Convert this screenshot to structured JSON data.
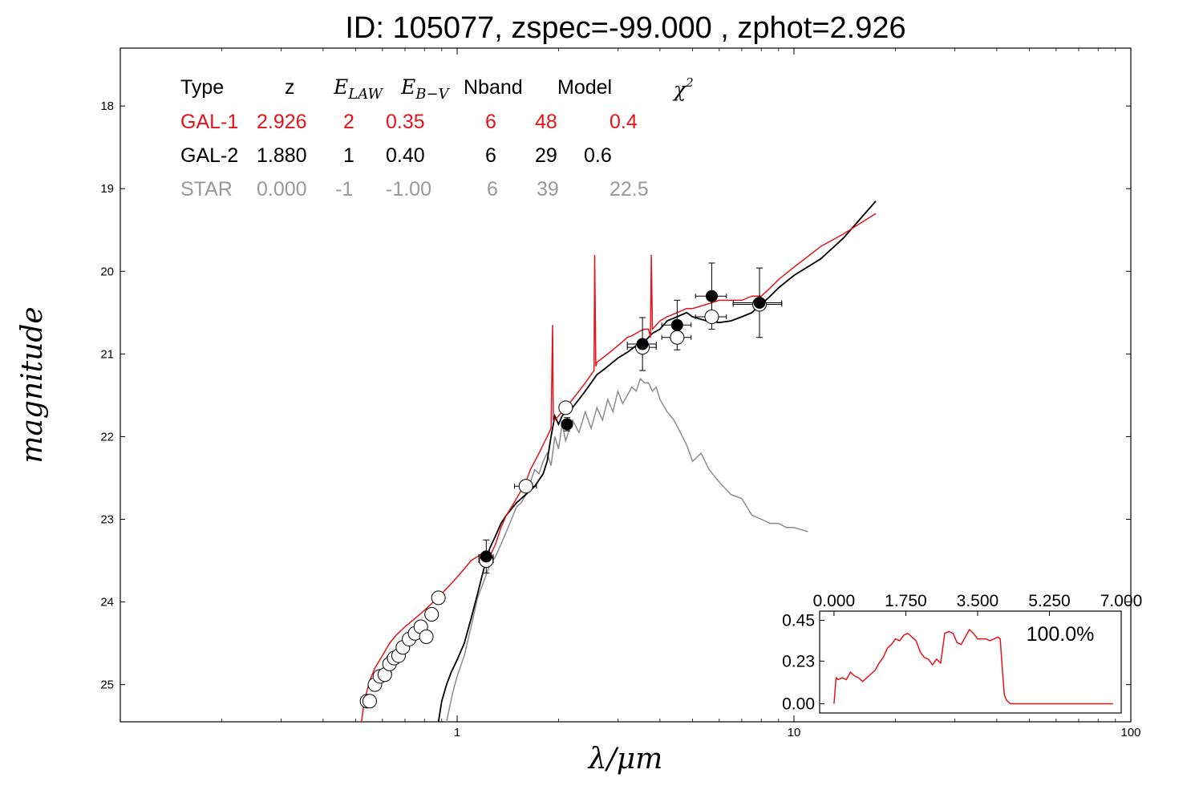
{
  "title": "ID:  105077, zspec=-99.000 , zphot=2.926",
  "colors": {
    "gal1": "#e3141c",
    "gal2": "#000000",
    "star": "#8c8c8c",
    "err": "#000000"
  },
  "chart_data": [
    {
      "type": "line",
      "name": "sed",
      "xlabel": "λ/μm",
      "ylabel": "magnitude",
      "xscale": "log",
      "xlim": [
        0.1,
        100
      ],
      "ylim": [
        25.45,
        17.3
      ],
      "x_tick_labels": [
        "1",
        "10",
        "100"
      ],
      "x_ticks": [
        1,
        10,
        100
      ],
      "y_ticks": [
        18,
        19,
        20,
        21,
        22,
        23,
        24,
        25
      ],
      "y_tick_labels": [
        "18",
        "19",
        "20",
        "21",
        "22",
        "23",
        "24",
        "25"
      ],
      "table": {
        "headers": [
          "Type",
          "z",
          "E_LAW",
          "E_B−V",
          "Nband",
          "Model",
          "χ2"
        ],
        "rows": [
          {
            "type": "GAL-1",
            "z": "2.926",
            "elaw": "2",
            "ebv": "0.35",
            "nband": "6",
            "model": "48",
            "chi2": "0.4",
            "color": "#e3141c"
          },
          {
            "type": "GAL-2",
            "z": "1.880",
            "elaw": "1",
            "ebv": "0.40",
            "nband": "6",
            "model": "29",
            "chi2": "0.6",
            "color": "#000000"
          },
          {
            "type": "STAR",
            "z": "0.000",
            "elaw": "-1",
            "ebv": "-1.00",
            "nband": "6",
            "model": "39",
            "chi2": "22.5",
            "color": "#999999"
          }
        ]
      },
      "series": [
        {
          "name": "GAL-1",
          "color": "#e3141c",
          "x": [
            0.52,
            0.53,
            0.55,
            0.57,
            0.6,
            0.63,
            0.66,
            0.7,
            0.75,
            0.8,
            0.85,
            0.9,
            0.95,
            1.0,
            1.05,
            1.1,
            1.15,
            1.2,
            1.25,
            1.3,
            1.35,
            1.4,
            1.45,
            1.5,
            1.55,
            1.6,
            1.65,
            1.7,
            1.75,
            1.8,
            1.85,
            1.9,
            1.92,
            1.93,
            1.95,
            2.0,
            2.05,
            2.1,
            2.15,
            2.2,
            2.3,
            2.4,
            2.5,
            2.55,
            2.56,
            2.58,
            2.6,
            2.7,
            2.8,
            2.9,
            3.0,
            3.1,
            3.2,
            3.3,
            3.4,
            3.5,
            3.6,
            3.7,
            3.75,
            3.77,
            3.8,
            3.9,
            4.0,
            4.2,
            4.5,
            4.8,
            5.0,
            5.5,
            6.0,
            6.5,
            7.0,
            7.5,
            8.0,
            8.5,
            9.0,
            10.0,
            12.0,
            14.0,
            17.5
          ],
          "y": [
            25.45,
            25.2,
            24.95,
            24.8,
            24.65,
            24.5,
            24.4,
            24.3,
            24.2,
            24.1,
            24.0,
            23.9,
            23.8,
            23.7,
            23.6,
            23.5,
            23.45,
            23.4,
            23.45,
            23.3,
            23.1,
            22.95,
            22.85,
            22.75,
            22.65,
            22.55,
            22.4,
            22.3,
            22.2,
            22.1,
            22.0,
            21.9,
            20.65,
            21.8,
            21.8,
            21.75,
            21.7,
            21.65,
            21.6,
            21.55,
            21.45,
            21.35,
            21.25,
            21.2,
            19.8,
            21.15,
            21.1,
            21.05,
            21.0,
            20.95,
            20.9,
            20.85,
            20.8,
            20.78,
            20.75,
            20.72,
            20.7,
            20.7,
            20.8,
            19.8,
            20.7,
            20.65,
            20.6,
            20.55,
            20.5,
            20.45,
            20.45,
            20.4,
            20.35,
            20.35,
            20.35,
            20.3,
            20.3,
            20.2,
            20.1,
            19.95,
            19.7,
            19.55,
            19.3
          ]
        },
        {
          "name": "GAL-2",
          "color": "#000000",
          "x": [
            0.88,
            0.9,
            0.93,
            0.96,
            1.0,
            1.05,
            1.1,
            1.15,
            1.2,
            1.25,
            1.3,
            1.35,
            1.4,
            1.5,
            1.6,
            1.7,
            1.8,
            1.85,
            1.9,
            1.95,
            2.0,
            2.05,
            2.1,
            2.2,
            2.3,
            2.4,
            2.5,
            2.6,
            2.7,
            2.8,
            3.0,
            3.2,
            3.4,
            3.6,
            3.8,
            4.0,
            4.2,
            4.5,
            4.8,
            5.0,
            5.5,
            6.0,
            6.5,
            7.0,
            7.5,
            8.0,
            8.5,
            9.0,
            10.0,
            12.0,
            14.0,
            17.5
          ],
          "y": [
            25.45,
            25.2,
            25.0,
            24.85,
            24.7,
            24.5,
            24.2,
            23.9,
            23.6,
            23.35,
            23.2,
            23.05,
            22.95,
            22.8,
            22.7,
            22.6,
            22.45,
            22.3,
            22.0,
            21.75,
            21.85,
            21.75,
            21.7,
            21.65,
            21.55,
            21.45,
            21.35,
            21.25,
            21.2,
            21.15,
            21.05,
            20.98,
            20.9,
            20.85,
            20.75,
            20.7,
            20.6,
            20.55,
            20.5,
            20.55,
            20.6,
            20.62,
            20.6,
            20.55,
            20.5,
            20.4,
            20.3,
            20.2,
            20.05,
            19.85,
            19.6,
            19.15
          ]
        },
        {
          "name": "STAR",
          "color": "#8c8c8c",
          "x": [
            0.93,
            0.97,
            1.0,
            1.05,
            1.1,
            1.15,
            1.2,
            1.25,
            1.3,
            1.35,
            1.4,
            1.45,
            1.5,
            1.55,
            1.6,
            1.65,
            1.7,
            1.75,
            1.8,
            1.85,
            1.9,
            1.95,
            2.0,
            2.05,
            2.1,
            2.2,
            2.3,
            2.4,
            2.5,
            2.6,
            2.7,
            2.8,
            2.9,
            3.0,
            3.1,
            3.2,
            3.3,
            3.4,
            3.5,
            3.6,
            3.7,
            3.8,
            3.9,
            4.0,
            4.2,
            4.4,
            4.6,
            4.8,
            5.0,
            5.3,
            5.6,
            6.0,
            6.5,
            7.0,
            7.5,
            8.0,
            8.5,
            9.0,
            9.5,
            10.0,
            11.0
          ],
          "y": [
            25.45,
            25.1,
            24.9,
            24.65,
            24.3,
            23.95,
            23.75,
            23.55,
            23.45,
            23.3,
            23.15,
            23.0,
            22.85,
            22.8,
            22.7,
            22.55,
            22.4,
            22.45,
            22.3,
            22.2,
            22.35,
            22.0,
            22.15,
            21.85,
            22.05,
            21.8,
            21.95,
            21.7,
            21.9,
            21.65,
            21.8,
            21.55,
            21.7,
            21.45,
            21.6,
            21.5,
            21.4,
            21.45,
            21.3,
            21.35,
            21.35,
            21.45,
            21.4,
            21.55,
            21.7,
            21.8,
            21.95,
            22.1,
            22.3,
            22.2,
            22.4,
            22.55,
            22.7,
            22.75,
            22.95,
            23.0,
            23.05,
            23.05,
            23.1,
            23.1,
            23.15
          ]
        }
      ],
      "open_points": [
        {
          "x": 0.54,
          "y": 25.2,
          "xerr": 0.01
        },
        {
          "x": 0.55,
          "y": 25.2,
          "xerr": 0.01
        },
        {
          "x": 0.57,
          "y": 25.0,
          "xerr": 0.01
        },
        {
          "x": 0.59,
          "y": 24.9,
          "xerr": 0.01
        },
        {
          "x": 0.61,
          "y": 24.88,
          "xerr": 0.01
        },
        {
          "x": 0.63,
          "y": 24.75,
          "xerr": 0.02
        },
        {
          "x": 0.65,
          "y": 24.68,
          "xerr": 0.03
        },
        {
          "x": 0.67,
          "y": 24.65,
          "xerr": 0.03
        },
        {
          "x": 0.69,
          "y": 24.55,
          "xerr": 0.02
        },
        {
          "x": 0.72,
          "y": 24.45,
          "xerr": 0.02
        },
        {
          "x": 0.75,
          "y": 24.38,
          "xerr": 0.02
        },
        {
          "x": 0.78,
          "y": 24.3,
          "xerr": 0.02
        },
        {
          "x": 0.81,
          "y": 24.42,
          "xerr": 0.02
        },
        {
          "x": 0.84,
          "y": 24.15,
          "xerr": 0.02
        },
        {
          "x": 0.88,
          "y": 23.95,
          "xerr": 0.02
        },
        {
          "x": 1.22,
          "y": 23.5,
          "xerr": 0.06
        },
        {
          "x": 1.6,
          "y": 22.6,
          "xerr": 0.12
        },
        {
          "x": 2.1,
          "y": 21.65,
          "xerr": 0.07
        },
        {
          "x": 3.55,
          "y": 20.92,
          "xerr": 0.35
        },
        {
          "x": 4.5,
          "y": 20.8,
          "xerr": 0.45
        },
        {
          "x": 5.7,
          "y": 20.55,
          "xerr": 0.6
        },
        {
          "x": 7.9,
          "y": 20.4,
          "xerr": 1.3
        }
      ],
      "filled_points": [
        {
          "x": 1.22,
          "y": 23.45,
          "xerr": 0.06,
          "yerr": 0.2
        },
        {
          "x": 2.12,
          "y": 21.85,
          "xerr": 0.08,
          "yerr": 0.08
        },
        {
          "x": 3.55,
          "y": 20.88,
          "xerr": 0.35,
          "yerr": 0.32
        },
        {
          "x": 4.5,
          "y": 20.65,
          "xerr": 0.45,
          "yerr": 0.3
        },
        {
          "x": 5.7,
          "y": 20.3,
          "xerr": 0.6,
          "yerr": 0.4
        },
        {
          "x": 7.9,
          "y": 20.38,
          "xerr": 1.3,
          "yerr": 0.42
        }
      ]
    },
    {
      "type": "line",
      "name": "pdz-inset",
      "annotation": "100.0%",
      "xlim": [
        -0.35,
        7.0
      ],
      "ylim": [
        -0.05,
        0.5
      ],
      "x_ticks": [
        0.0,
        1.75,
        3.5,
        5.25,
        7.0
      ],
      "x_tick_labels": [
        "0.000",
        "1.750",
        "3.500",
        "5.250",
        "7.000"
      ],
      "y_ticks": [
        0.0,
        0.23,
        0.45
      ],
      "y_tick_labels": [
        "0.00",
        "0.23",
        "0.45"
      ],
      "series": [
        {
          "name": "PDZ",
          "color": "#e3141c",
          "x": [
            0.0,
            0.05,
            0.1,
            0.2,
            0.3,
            0.4,
            0.5,
            0.6,
            0.7,
            0.8,
            0.9,
            1.0,
            1.1,
            1.2,
            1.3,
            1.4,
            1.5,
            1.6,
            1.7,
            1.8,
            1.9,
            2.0,
            2.1,
            2.2,
            2.3,
            2.4,
            2.5,
            2.6,
            2.7,
            2.8,
            2.9,
            3.0,
            3.1,
            3.2,
            3.3,
            3.4,
            3.5,
            3.6,
            3.7,
            3.8,
            3.9,
            4.0,
            4.05,
            4.1,
            4.15,
            4.2,
            4.3,
            4.5,
            5.0,
            6.0,
            6.5,
            6.8
          ],
          "y": [
            0.0,
            0.14,
            0.13,
            0.14,
            0.13,
            0.17,
            0.15,
            0.14,
            0.12,
            0.14,
            0.16,
            0.18,
            0.22,
            0.25,
            0.3,
            0.32,
            0.35,
            0.34,
            0.37,
            0.38,
            0.36,
            0.34,
            0.28,
            0.25,
            0.24,
            0.21,
            0.24,
            0.22,
            0.38,
            0.39,
            0.38,
            0.33,
            0.32,
            0.36,
            0.4,
            0.38,
            0.35,
            0.35,
            0.35,
            0.34,
            0.35,
            0.36,
            0.35,
            0.2,
            0.05,
            0.02,
            0.0,
            0.0,
            0.0,
            0.0,
            0.0,
            0.0
          ]
        }
      ]
    }
  ]
}
